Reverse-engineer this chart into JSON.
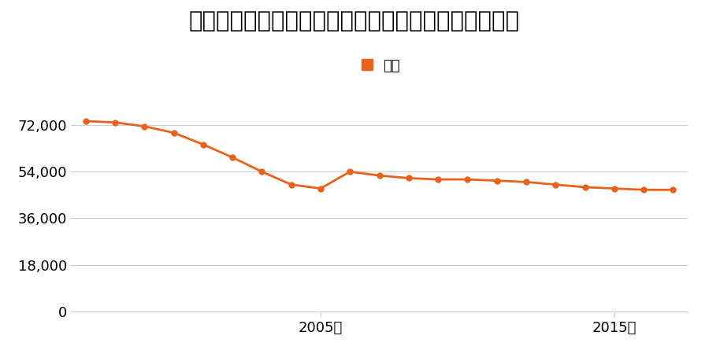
{
  "title": "富山県富山市四ツ葉町字大田割１０９番１の地価推移",
  "legend_label": "価格",
  "line_color": "#E8621C",
  "marker_color": "#E8621C",
  "background_color": "#ffffff",
  "years": [
    1997,
    1998,
    1999,
    2000,
    2001,
    2002,
    2003,
    2004,
    2005,
    2006,
    2007,
    2008,
    2009,
    2010,
    2011,
    2012,
    2013,
    2014,
    2015,
    2016,
    2017
  ],
  "values": [
    73500,
    73000,
    71500,
    69000,
    64500,
    59500,
    54000,
    49000,
    47500,
    54000,
    52500,
    51500,
    51000,
    51000,
    50500,
    50000,
    49000,
    48000,
    47500,
    47000,
    47000
  ],
  "yticks": [
    0,
    18000,
    36000,
    54000,
    72000
  ],
  "ytick_labels": [
    "0",
    "18,000",
    "36,000",
    "54,000",
    "72,000"
  ],
  "xtick_years": [
    2005,
    2015
  ],
  "xtick_labels": [
    "2005年",
    "2015年"
  ],
  "ylim": [
    0,
    82000
  ],
  "xlim_left": 1996.5,
  "xlim_right": 2017.5,
  "grid_color": "#cccccc",
  "title_fontsize": 21,
  "legend_fontsize": 13,
  "tick_fontsize": 13
}
